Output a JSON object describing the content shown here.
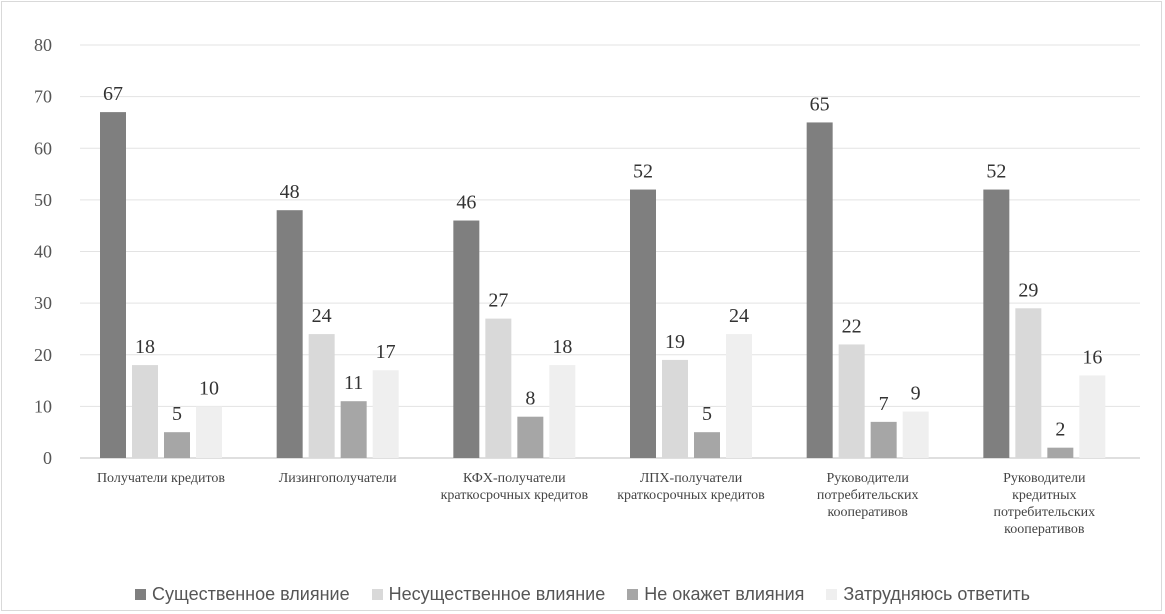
{
  "chart_data": {
    "type": "bar",
    "categories": [
      [
        "Получатели кредитов"
      ],
      [
        "Лизингополучатели"
      ],
      [
        "КФХ-получатели",
        "краткосрочных кредитов"
      ],
      [
        "ЛПХ-получатели",
        "краткосрочных кредитов"
      ],
      [
        "Руководители",
        "потребительских",
        "кооперативов"
      ],
      [
        "Руководители",
        "кредитных",
        "потребительских",
        "кооперативов"
      ]
    ],
    "series": [
      {
        "name": "Существенное влияние",
        "color": "#7f7f7f",
        "values": [
          67,
          48,
          46,
          52,
          65,
          52
        ]
      },
      {
        "name": "Несущественное влияние",
        "color": "#d9d9d9",
        "values": [
          18,
          24,
          27,
          19,
          22,
          29
        ]
      },
      {
        "name": "Не окажет влияния",
        "color": "#a6a6a6",
        "values": [
          5,
          11,
          8,
          5,
          7,
          2
        ]
      },
      {
        "name": "Затрудняюсь ответить",
        "color": "#efefef",
        "values": [
          10,
          17,
          18,
          24,
          9,
          16
        ]
      }
    ],
    "yticks": [
      "0",
      "10",
      "20",
      "30",
      "40",
      "50",
      "60",
      "70",
      "80"
    ],
    "ylim": [
      0,
      80
    ],
    "grid": true,
    "legend": "bottom"
  }
}
